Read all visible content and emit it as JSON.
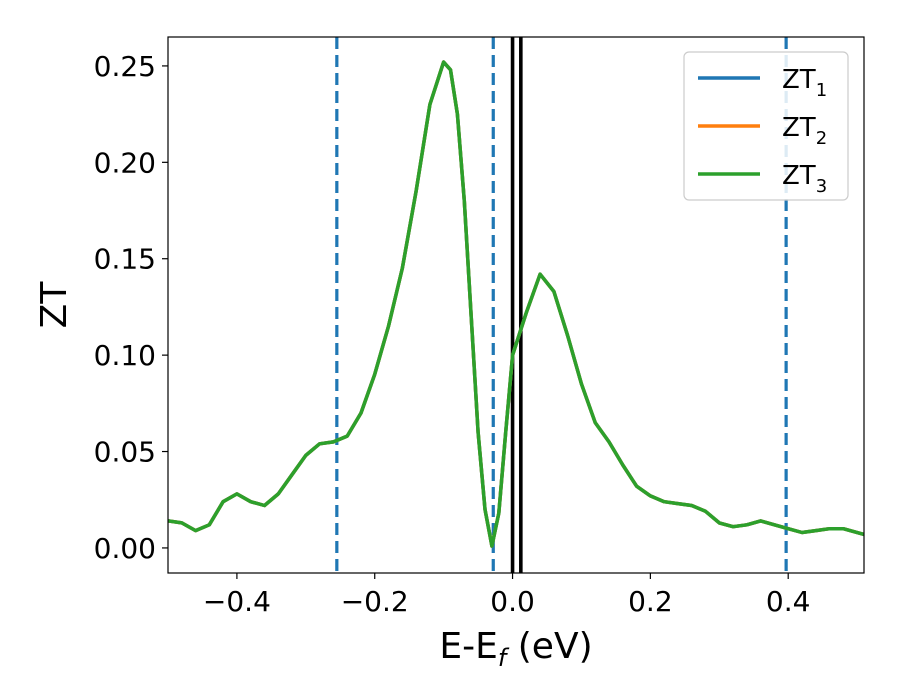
{
  "chart_data": {
    "type": "line",
    "xlabel": "E-E",
    "xlabel_sub": "f",
    "xlabel_unit": " (eV)",
    "ylabel": "ZT",
    "xlim": [
      -0.5,
      0.51
    ],
    "ylim": [
      -0.013,
      0.265
    ],
    "x_ticks": [
      {
        "value": -0.4,
        "label": "−0.4"
      },
      {
        "value": -0.2,
        "label": "−0.2"
      },
      {
        "value": 0.0,
        "label": "0.0"
      },
      {
        "value": 0.2,
        "label": "0.2"
      },
      {
        "value": 0.4,
        "label": "0.4"
      }
    ],
    "y_ticks": [
      {
        "value": 0.0,
        "label": "0.00"
      },
      {
        "value": 0.05,
        "label": "0.05"
      },
      {
        "value": 0.1,
        "label": "0.10"
      },
      {
        "value": 0.15,
        "label": "0.15"
      },
      {
        "value": 0.2,
        "label": "0.20"
      },
      {
        "value": 0.25,
        "label": "0.25"
      }
    ],
    "grid": false,
    "legend_position": "top-right",
    "series": [
      {
        "name": "ZT",
        "sub": "1",
        "color": "#1f77b4"
      },
      {
        "name": "ZT",
        "sub": "2",
        "color": "#ff7f0e"
      },
      {
        "name": "ZT",
        "sub": "3",
        "color": "#2ca02c"
      }
    ],
    "curve": {
      "x": [
        -0.5,
        -0.48,
        -0.46,
        -0.44,
        -0.42,
        -0.4,
        -0.38,
        -0.36,
        -0.34,
        -0.32,
        -0.3,
        -0.28,
        -0.26,
        -0.24,
        -0.22,
        -0.2,
        -0.18,
        -0.16,
        -0.14,
        -0.12,
        -0.1,
        -0.09,
        -0.08,
        -0.07,
        -0.06,
        -0.05,
        -0.04,
        -0.03,
        -0.02,
        -0.01,
        0.0,
        0.02,
        0.04,
        0.06,
        0.08,
        0.1,
        0.12,
        0.14,
        0.16,
        0.18,
        0.2,
        0.22,
        0.24,
        0.26,
        0.28,
        0.3,
        0.32,
        0.34,
        0.36,
        0.38,
        0.4,
        0.42,
        0.44,
        0.46,
        0.48,
        0.51
      ],
      "y": [
        0.014,
        0.013,
        0.009,
        0.012,
        0.024,
        0.028,
        0.024,
        0.022,
        0.028,
        0.038,
        0.048,
        0.054,
        0.055,
        0.058,
        0.07,
        0.09,
        0.115,
        0.145,
        0.185,
        0.23,
        0.252,
        0.248,
        0.225,
        0.18,
        0.12,
        0.06,
        0.02,
        0.001,
        0.018,
        0.06,
        0.1,
        0.122,
        0.142,
        0.133,
        0.11,
        0.085,
        0.065,
        0.055,
        0.043,
        0.032,
        0.027,
        0.024,
        0.023,
        0.022,
        0.019,
        0.013,
        0.011,
        0.012,
        0.014,
        0.012,
        0.01,
        0.008,
        0.009,
        0.01,
        0.01,
        0.007
      ]
    },
    "vertical_lines": [
      {
        "x": -0.255,
        "style": "dashed",
        "color": "#1f77b4"
      },
      {
        "x": -0.028,
        "style": "dashed",
        "color": "#1f77b4"
      },
      {
        "x": 0.397,
        "style": "dashed",
        "color": "#1f77b4"
      },
      {
        "x": 0.0,
        "style": "solid",
        "color": "#000000"
      },
      {
        "x": 0.012,
        "style": "solid",
        "color": "#000000"
      }
    ]
  }
}
